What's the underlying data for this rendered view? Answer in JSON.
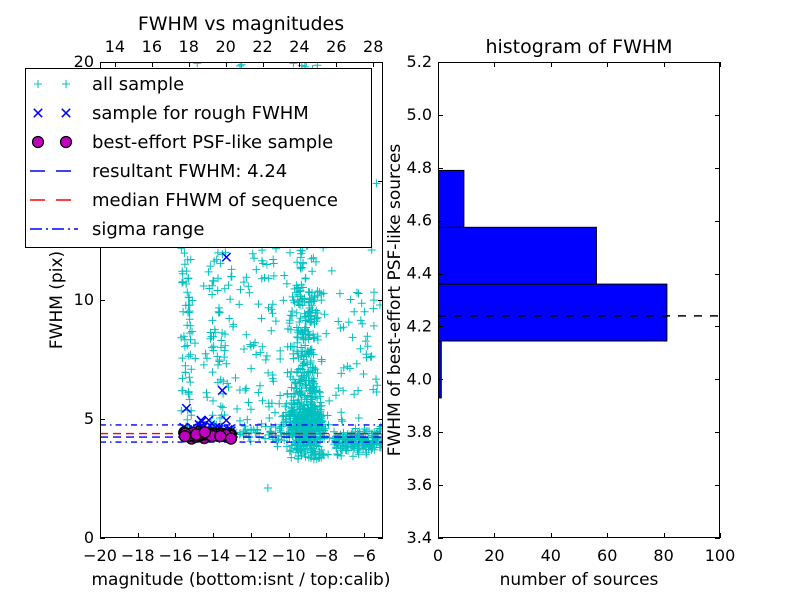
{
  "figure": {
    "background": "#ffffff"
  },
  "chart_data": [
    {
      "type": "scatter",
      "title": "FWHM vs magnitudes",
      "xlabel": "magnitude (bottom:isnt / top:calib)",
      "ylabel": "FWHM (pix)",
      "xlim": [
        -20,
        -5
      ],
      "ylim": [
        0,
        20
      ],
      "grid": false,
      "xticks": {
        "values": [
          -20,
          -18,
          -16,
          -14,
          -12,
          -10,
          -8,
          -6
        ],
        "labels": [
          "−20",
          "−18",
          "−16",
          "−14",
          "−12",
          "−10",
          "−8",
          "−6"
        ]
      },
      "yticks": {
        "values": [
          0,
          5,
          10,
          15,
          20
        ],
        "labels": [
          "0",
          "5",
          "10",
          "15",
          "20"
        ]
      },
      "top_axis": {
        "lim": [
          13.19,
          28.53
        ],
        "values": [
          14,
          16,
          18,
          20,
          22,
          24,
          26,
          28
        ],
        "labels": [
          "14",
          "16",
          "18",
          "20",
          "22",
          "24",
          "26",
          "28"
        ]
      },
      "colors": {
        "all_sample": "#00bfbf",
        "rough_sample": "#0000ff",
        "psf_sample": "#bf00bf",
        "resultant": "#0000ff",
        "median": "#ff0000",
        "sigma": "#0000ff"
      },
      "hlines": [
        {
          "name": "resultant FWHM",
          "value": 4.24,
          "color": "#0000ff",
          "style": "dashed"
        },
        {
          "name": "median FHWM of sequence",
          "value": 4.39,
          "color": "#ff0000",
          "style": "dashed"
        },
        {
          "name": "sigma range upper",
          "value": 4.75,
          "color": "#0000ff",
          "style": "dashdot"
        },
        {
          "name": "sigma range lower",
          "value": 4.03,
          "color": "#0000ff",
          "style": "dashdot"
        }
      ],
      "legend": {
        "position": "upper left",
        "entries": [
          {
            "label": "all sample",
            "marker": "plus",
            "color": "#00bfbf"
          },
          {
            "label": "sample for rough FWHM",
            "marker": "x",
            "color": "#0000ff"
          },
          {
            "label": "best-effort PSF-like sample",
            "marker": "dot",
            "color": "#bf00bf"
          },
          {
            "label": "resultant FWHM: 4.24",
            "line": "dashed",
            "color": "#0000ff"
          },
          {
            "label": "median FHWM of sequence",
            "line": "dashed",
            "color": "#ff0000"
          },
          {
            "label": "sigma range",
            "line": "dashdot",
            "color": "#0000ff"
          }
        ]
      },
      "series_summary": {
        "all_sample": "~1300 cyan + markers, magnitude −16 to −5, FWHM 2–20 px, dense plume near magnitude −9 at FWHM 4–8",
        "rough_sample": "~28 blue x markers, magnitude −15.6 to −12.7, FWHM ≈4.3–5.0 with outliers at 5.45, 6.2 and 11.8",
        "psf_sample": "~42 magenta filled circles, magnitude −15.6 to −13.0, FWHM ≈4.15–4.5"
      },
      "scatter_clusters": [
        {
          "series": "all",
          "n": 420,
          "x": {
            "d": "n",
            "mu": -9.1,
            "s": 0.5,
            "lo": -11.2,
            "hi": -7.2
          },
          "y": {
            "d": "n",
            "mu": 4.7,
            "s": 0.55,
            "lo": 3.6,
            "hi": 6.6
          }
        },
        {
          "series": "all",
          "n": 220,
          "x": {
            "d": "n",
            "mu": -9.1,
            "s": 0.45,
            "lo": -10.8,
            "hi": -7.6
          },
          "y": {
            "d": "u",
            "lo": 5.6,
            "hi": 10.5
          }
        },
        {
          "series": "all",
          "n": 110,
          "x": {
            "d": "n",
            "mu": -9.1,
            "s": 0.6,
            "lo": -11.0,
            "hi": -7.4
          },
          "y": {
            "d": "u",
            "lo": 10.5,
            "hi": 20.0
          }
        },
        {
          "series": "all",
          "n": 30,
          "x": {
            "d": "n",
            "mu": -8.7,
            "s": 0.5,
            "lo": -10.0,
            "hi": -7.3
          },
          "y": {
            "d": "u",
            "lo": 3.3,
            "hi": 3.7
          }
        },
        {
          "series": "all",
          "n": 170,
          "x": {
            "d": "u",
            "lo": -7.6,
            "hi": -5.05
          },
          "y": {
            "d": "n",
            "mu": 4.05,
            "s": 0.28,
            "lo": 3.4,
            "hi": 4.8
          }
        },
        {
          "series": "all",
          "n": 45,
          "x": {
            "d": "u",
            "lo": -7.5,
            "hi": -5.1
          },
          "y": {
            "d": "u",
            "lo": 4.8,
            "hi": 10.5
          }
        },
        {
          "series": "all",
          "n": 60,
          "x": {
            "d": "n",
            "mu": -15.35,
            "s": 0.18,
            "lo": -15.85,
            "hi": -14.9
          },
          "y": {
            "d": "u",
            "lo": 4.6,
            "hi": 12.5
          }
        },
        {
          "series": "all",
          "n": 10,
          "x": {
            "d": "n",
            "mu": -15.3,
            "s": 0.2,
            "lo": -15.8,
            "hi": -14.9
          },
          "y": {
            "d": "u",
            "lo": 12.5,
            "hi": 19.5
          }
        },
        {
          "series": "all",
          "n": 65,
          "x": {
            "d": "n",
            "mu": -13.9,
            "s": 0.3,
            "lo": -14.6,
            "hi": -13.2
          },
          "y": {
            "d": "u",
            "lo": 4.5,
            "hi": 12.0
          }
        },
        {
          "series": "all",
          "n": 80,
          "x": {
            "d": "u",
            "lo": -13.4,
            "hi": -10.4
          },
          "y": {
            "d": "u",
            "lo": 4.4,
            "hi": 12.5
          }
        },
        {
          "series": "all",
          "n": 22,
          "x": {
            "d": "u",
            "lo": -13.5,
            "hi": -9.6
          },
          "y": {
            "d": "u",
            "lo": 12.5,
            "hi": 19.9
          }
        },
        {
          "series": "all",
          "n": 40,
          "x": {
            "d": "u",
            "lo": -12.6,
            "hi": -9.4
          },
          "y": {
            "d": "n",
            "mu": 4.35,
            "s": 0.25,
            "lo": 3.8,
            "hi": 5.0
          }
        },
        {
          "series": "rough",
          "n": 22,
          "x": {
            "d": "n",
            "mu": -14.1,
            "s": 0.8,
            "lo": -15.6,
            "hi": -12.7
          },
          "y": {
            "d": "n",
            "mu": 4.6,
            "s": 0.16,
            "lo": 4.3,
            "hi": 5.0
          }
        },
        {
          "series": "psf",
          "n": 42,
          "x": {
            "d": "u",
            "lo": -15.55,
            "hi": -13.05
          },
          "y": {
            "d": "n",
            "mu": 4.3,
            "s": 0.07,
            "lo": 4.13,
            "hi": 4.48
          }
        }
      ],
      "extra_points": {
        "all": [
          [
            -11.1,
            2.1
          ],
          [
            -5.35,
            14.9
          ],
          [
            -5.6,
            12.1
          ],
          [
            -14.85,
            19.95
          ],
          [
            -9.75,
            19.95
          ],
          [
            -9.3,
            19.85
          ],
          [
            -6.1,
            9.0
          ],
          [
            -5.2,
            4.6
          ]
        ],
        "rough": [
          [
            -15.42,
            5.45
          ],
          [
            -13.52,
            6.2
          ],
          [
            -13.3,
            11.8
          ],
          [
            -14.6,
            4.9
          ],
          [
            -15.35,
            4.55
          ],
          [
            -13.05,
            4.5
          ]
        ]
      }
    },
    {
      "type": "bar",
      "orientation": "horizontal",
      "title": "histogram of FWHM",
      "xlabel": "number of sources",
      "ylabel": "FWHM of best-effort PSF-like sources",
      "xlim": [
        0,
        100
      ],
      "ylim": [
        3.4,
        5.2
      ],
      "grid": false,
      "xticks": {
        "values": [
          0,
          20,
          40,
          60,
          80,
          100
        ],
        "labels": [
          "0",
          "20",
          "40",
          "60",
          "80",
          "100"
        ]
      },
      "yticks": {
        "values": [
          3.4,
          3.6,
          3.8,
          4.0,
          4.2,
          4.4,
          4.6,
          4.8,
          5.0,
          5.2
        ],
        "labels": [
          "3.4",
          "3.6",
          "3.8",
          "4.0",
          "4.2",
          "4.4",
          "4.6",
          "4.8",
          "5.0",
          "5.2"
        ]
      },
      "bar_color": "#0000ff",
      "bar_edge_color": "#000000",
      "bins": {
        "edges": [
          3.93,
          4.145,
          4.36,
          4.575,
          4.79
        ],
        "counts": [
          1,
          81,
          56,
          9
        ]
      },
      "hline": {
        "name": "resultant FWHM",
        "value": 4.24,
        "color": "#000000",
        "style": "dashed"
      }
    }
  ]
}
